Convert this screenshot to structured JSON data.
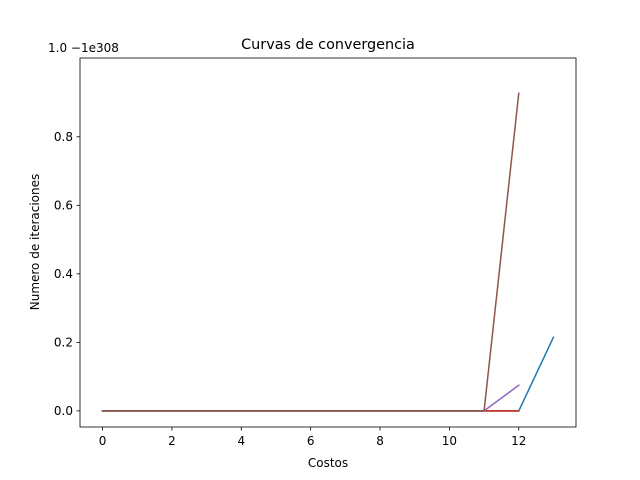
{
  "chart_data": {
    "type": "line",
    "title": "Curvas de convergencia",
    "xlabel": "Costos",
    "ylabel": "Numero de iteraciones",
    "offset_text": "1.0 −1e308",
    "xlim": [
      -0.65,
      13.65
    ],
    "ylim": [
      -0.047,
      1.03
    ],
    "x_ticks": [
      0,
      2,
      4,
      6,
      8,
      10,
      12
    ],
    "x_tick_labels": [
      "0",
      "2",
      "4",
      "6",
      "8",
      "10",
      "12"
    ],
    "y_ticks": [
      0.0,
      0.2,
      0.4,
      0.6,
      0.8
    ],
    "y_tick_labels": [
      "0.0",
      "0.2",
      "0.4",
      "0.6",
      "0.8"
    ],
    "grid": false,
    "series": [
      {
        "color": "#1f77b4",
        "x": [
          0,
          1,
          2,
          3,
          4,
          5,
          6,
          7,
          8,
          9,
          10,
          11,
          12,
          13
        ],
        "y": [
          0,
          0,
          0,
          0,
          0,
          0,
          0,
          0,
          0,
          0,
          0,
          0,
          0,
          0.215
        ]
      },
      {
        "color": "#ff7f0e",
        "x": [
          0,
          1,
          2,
          3,
          4,
          5,
          6,
          7,
          8,
          9,
          10,
          11,
          12
        ],
        "y": [
          0,
          0,
          0,
          0,
          0,
          0,
          0,
          0,
          0,
          0,
          0,
          0,
          0
        ]
      },
      {
        "color": "#2ca02c",
        "x": [
          0,
          1,
          2,
          3,
          4,
          5,
          6,
          7,
          8,
          9,
          10,
          11,
          12
        ],
        "y": [
          0,
          0,
          0,
          0,
          0,
          0,
          0,
          0,
          0,
          0,
          0,
          0,
          0
        ]
      },
      {
        "color": "#d62728",
        "x": [
          0,
          1,
          2,
          3,
          4,
          5,
          6,
          7,
          8,
          9,
          10,
          11,
          12
        ],
        "y": [
          0,
          0,
          0,
          0,
          0,
          0,
          0,
          0,
          0,
          0,
          0,
          0,
          0
        ]
      },
      {
        "color": "#9467bd",
        "x": [
          0,
          1,
          2,
          3,
          4,
          5,
          6,
          7,
          8,
          9,
          10,
          11,
          12
        ],
        "y": [
          0,
          0,
          0,
          0,
          0,
          0,
          0,
          0,
          0,
          0,
          0,
          0,
          0.075
        ]
      },
      {
        "color": "#8c564b",
        "x": [
          0,
          1,
          2,
          3,
          4,
          5,
          6,
          7,
          8,
          9,
          10,
          11,
          12
        ],
        "y": [
          0,
          0,
          0,
          0,
          0,
          0,
          0,
          0,
          0,
          0,
          0,
          0,
          0.927
        ]
      }
    ]
  }
}
